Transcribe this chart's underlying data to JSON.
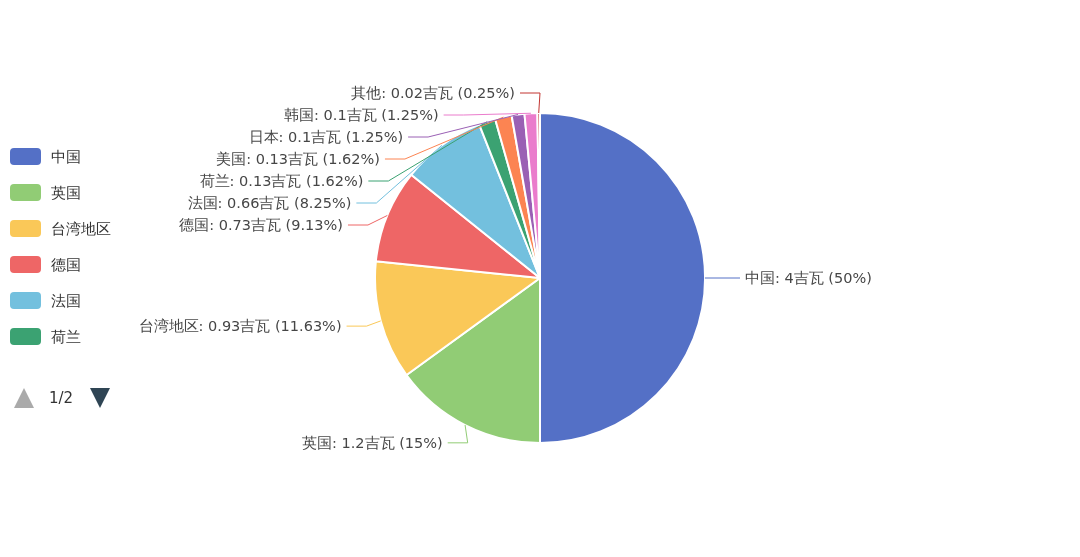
{
  "chart_data": {
    "type": "pie",
    "categories": [
      "中国",
      "英国",
      "台湾地区",
      "德国",
      "法国",
      "荷兰",
      "美国",
      "日本",
      "韩国",
      "其他"
    ],
    "values": [
      4,
      1.2,
      0.93,
      0.73,
      0.66,
      0.13,
      0.13,
      0.1,
      0.1,
      0.02
    ],
    "colors": [
      "#5470c6",
      "#91cc75",
      "#fac858",
      "#ee6666",
      "#73c0de",
      "#3ba272",
      "#fc8452",
      "#9a60b4",
      "#ea7ccc",
      "#c23531"
    ],
    "value_labels": [
      ": 4吉瓦 (50%)",
      ": 1.2吉瓦 (15%)",
      ": 0.93吉瓦 (11.63%)",
      ": 0.73吉瓦 (9.13%)",
      ": 0.66吉瓦 (8.25%)",
      ": 0.13吉瓦 (1.62%)",
      ": 0.13吉瓦 (1.62%)",
      ": 0.1吉瓦 (1.25%)",
      ": 0.1吉瓦 (1.25%)",
      ": 0.02吉瓦 (0.25%)"
    ],
    "legend": "left",
    "annotations": [
      "1/2"
    ]
  }
}
